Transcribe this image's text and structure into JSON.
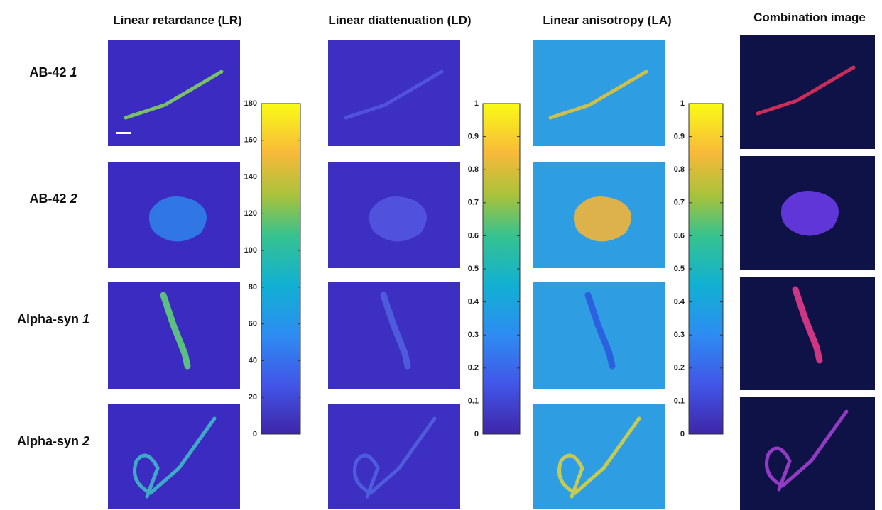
{
  "columns": [
    "Linear retardance (LR)",
    "Linear diattenuation (LD)",
    "Linear anisotropy (LA)",
    "Combination image"
  ],
  "rows": [
    {
      "name": "AB-42",
      "index": "1"
    },
    {
      "name": "AB-42",
      "index": "2"
    },
    {
      "name": "Alpha-syn",
      "index": "1"
    },
    {
      "name": "Alpha-syn",
      "index": "2"
    }
  ],
  "colorbars": [
    {
      "lim": [
        0,
        180
      ],
      "ticks": [
        0,
        20,
        40,
        60,
        80,
        100,
        120,
        140,
        160,
        180
      ]
    },
    {
      "lim": [
        0,
        1
      ],
      "ticks": [
        0,
        0.1,
        0.2,
        0.3,
        0.4,
        0.5,
        0.6,
        0.7,
        0.8,
        0.9,
        1
      ]
    },
    {
      "lim": [
        0,
        1
      ],
      "ticks": [
        0,
        0.1,
        0.2,
        0.3,
        0.4,
        0.5,
        0.6,
        0.7,
        0.8,
        0.9,
        1
      ]
    }
  ]
}
